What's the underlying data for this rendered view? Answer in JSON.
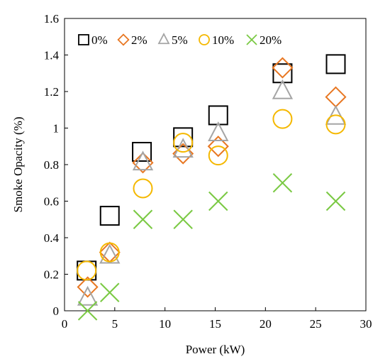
{
  "chart_data": {
    "type": "scatter",
    "xlabel": "Power (kW)",
    "ylabel": "Smoke Opacity (%)",
    "xlim": [
      0,
      30
    ],
    "ylim": [
      0,
      1.6
    ],
    "x_ticks": [
      "0",
      "5",
      "10",
      "15",
      "20",
      "25",
      "30"
    ],
    "y_ticks": [
      "0",
      "0.2",
      "0.4",
      "0.6",
      "0.8",
      "1",
      "1.2",
      "1.4",
      "1.6"
    ],
    "grid": false,
    "legend_position": "top",
    "series": [
      {
        "name": "0%",
        "marker": "square",
        "color": "#000000",
        "x": [
          2.2,
          4.5,
          7.7,
          11.8,
          15.3,
          21.7,
          27.0
        ],
        "y": [
          0.22,
          0.52,
          0.87,
          0.95,
          1.07,
          1.3,
          1.35
        ]
      },
      {
        "name": "2%",
        "marker": "diamond",
        "color": "#E87722",
        "x": [
          2.3,
          4.5,
          7.8,
          11.8,
          15.3,
          21.7,
          27.0
        ],
        "y": [
          0.13,
          0.32,
          0.81,
          0.86,
          0.9,
          1.33,
          1.17
        ]
      },
      {
        "name": "5%",
        "marker": "triangle",
        "color": "#A5A5A5",
        "x": [
          2.3,
          4.5,
          7.8,
          11.8,
          15.3,
          21.7,
          27.0
        ],
        "y": [
          0.07,
          0.3,
          0.81,
          0.88,
          0.97,
          1.2,
          1.06
        ]
      },
      {
        "name": "10%",
        "marker": "circle",
        "color": "#F5B800",
        "x": [
          2.2,
          4.5,
          7.8,
          11.8,
          15.3,
          21.7,
          27.0
        ],
        "y": [
          0.22,
          0.32,
          0.67,
          0.92,
          0.85,
          1.05,
          1.02
        ]
      },
      {
        "name": "20%",
        "marker": "x",
        "color": "#7AC943",
        "x": [
          2.3,
          4.5,
          7.8,
          11.8,
          15.3,
          21.7,
          27.0
        ],
        "y": [
          0.0,
          0.1,
          0.5,
          0.5,
          0.6,
          0.7,
          0.6
        ]
      }
    ]
  }
}
